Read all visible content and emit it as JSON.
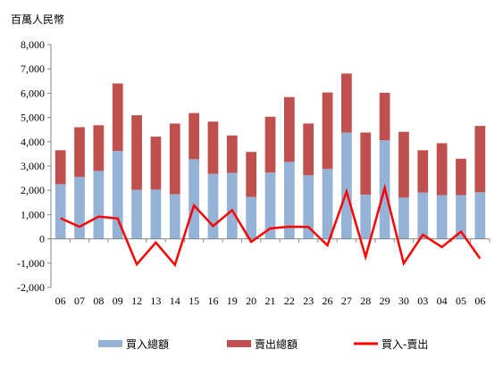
{
  "chart_data": {
    "type": "bar",
    "stacked": true,
    "unit_label": "百萬人民幣",
    "categories": [
      "06",
      "07",
      "08",
      "09",
      "12",
      "13",
      "14",
      "15",
      "16",
      "19",
      "20",
      "21",
      "22",
      "23",
      "26",
      "27",
      "28",
      "29",
      "30",
      "03",
      "04",
      "05",
      "06"
    ],
    "series": [
      {
        "name": "買入總額",
        "type": "bar",
        "color": "#95b3d7",
        "values": [
          2250,
          2550,
          2800,
          3620,
          2020,
          2030,
          1840,
          3280,
          2680,
          2720,
          1730,
          2730,
          3170,
          2620,
          2880,
          4380,
          1820,
          4060,
          1700,
          1910,
          1800,
          1800,
          1920
        ]
      },
      {
        "name": "賣出總額",
        "type": "bar",
        "color": "#c0504d",
        "values": [
          1400,
          2050,
          1880,
          2780,
          3070,
          2180,
          2910,
          1900,
          2150,
          1540,
          1850,
          2300,
          2670,
          2130,
          3150,
          2430,
          2560,
          1960,
          2710,
          1740,
          2140,
          1500,
          2730
        ]
      },
      {
        "name": "買入-賣出",
        "type": "line",
        "color": "#ff0000",
        "values": [
          850,
          500,
          920,
          840,
          -1050,
          -150,
          -1070,
          1380,
          530,
          1180,
          -120,
          430,
          500,
          490,
          -270,
          1950,
          -740,
          2100,
          -1010,
          170,
          -340,
          300,
          -810
        ]
      }
    ],
    "ylim": [
      -2000,
      8000
    ],
    "yticks": [
      "-2,000",
      "-1,000",
      "0",
      "1,000",
      "2,000",
      "3,000",
      "4,000",
      "5,000",
      "6,000",
      "7,000",
      "8,000"
    ],
    "ytick_values": [
      -2000,
      -1000,
      0,
      1000,
      2000,
      3000,
      4000,
      5000,
      6000,
      7000,
      8000
    ],
    "legend_position": "bottom"
  }
}
